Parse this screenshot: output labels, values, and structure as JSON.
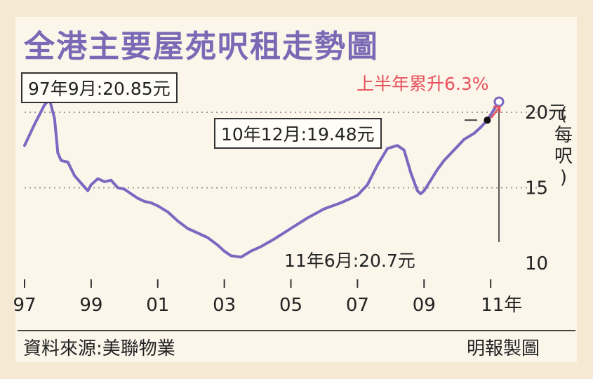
{
  "chart_data": {
    "type": "line",
    "title": "全港主要屋苑呎租走勢圖",
    "x_tick_labels": [
      "97",
      "99",
      "01",
      "03",
      "05",
      "07",
      "09",
      "11年"
    ],
    "y_tick_labels": [
      "20元",
      "15",
      "10"
    ],
    "y_unit": "(每呎)",
    "ylim": [
      10,
      21
    ],
    "xlim": [
      1997,
      2011.6
    ],
    "grid": "horizontal dotted",
    "series": [
      {
        "x": [
          1997.0,
          1997.3,
          1997.6,
          1997.75,
          1997.9,
          1998.0,
          1998.1,
          1998.3,
          1998.5,
          1998.7,
          1998.9,
          1999.0,
          1999.2,
          1999.4,
          1999.6,
          1999.8,
          2000.0,
          2000.2,
          2000.4,
          2000.6,
          2000.8,
          2001.0,
          2001.3,
          2001.6,
          2001.9,
          2002.2,
          2002.5,
          2002.8,
          2003.0,
          2003.2,
          2003.5,
          2003.8,
          2004.1,
          2004.5,
          2005.0,
          2005.5,
          2006.0,
          2006.5,
          2007.0,
          2007.3,
          2007.6,
          2007.9,
          2008.2,
          2008.4,
          2008.6,
          2008.8,
          2008.9,
          2009.0,
          2009.2,
          2009.4,
          2009.6,
          2009.9,
          2010.2,
          2010.5,
          2010.7,
          2010.9,
          2011.25
        ],
        "y": [
          17.8,
          19.2,
          20.5,
          20.85,
          19.6,
          17.3,
          16.8,
          16.7,
          15.8,
          15.3,
          14.8,
          15.2,
          15.6,
          15.4,
          15.5,
          15.0,
          14.9,
          14.6,
          14.3,
          14.1,
          14.0,
          13.8,
          13.4,
          12.8,
          12.3,
          12.0,
          11.7,
          11.2,
          10.8,
          10.5,
          10.4,
          10.8,
          11.1,
          11.6,
          12.3,
          13.0,
          13.6,
          14.0,
          14.5,
          15.2,
          16.5,
          17.6,
          17.8,
          17.5,
          16.0,
          14.8,
          14.6,
          14.8,
          15.5,
          16.2,
          16.8,
          17.5,
          18.2,
          18.6,
          19.0,
          19.48,
          20.7
        ]
      }
    ],
    "annotations": {
      "peak": "97年9月:20.85元",
      "dec10": "10年12月:19.48元",
      "jun11": "11年6月:20.7元",
      "half_year": "上半年累升6.3%"
    },
    "line_color": "#7b68c0",
    "highlight_color": "#e8505b"
  },
  "footer": {
    "source": "資料來源:美聯物業",
    "credit": "明報製圖"
  }
}
